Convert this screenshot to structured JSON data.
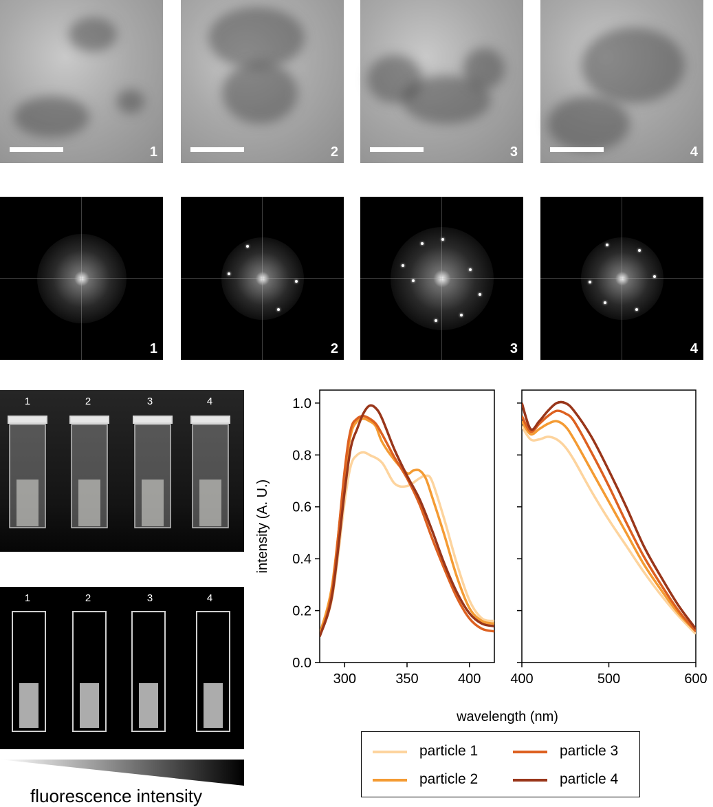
{
  "tem_panels": [
    {
      "label": "1"
    },
    {
      "label": "2"
    },
    {
      "label": "3"
    },
    {
      "label": "4"
    }
  ],
  "fft_panels": [
    {
      "label": "1"
    },
    {
      "label": "2"
    },
    {
      "label": "3"
    },
    {
      "label": "4"
    }
  ],
  "photo_ambient": {
    "labels": [
      "1",
      "2",
      "3",
      "4"
    ]
  },
  "photo_uv": {
    "labels": [
      "1",
      "2",
      "3",
      "4"
    ]
  },
  "gradient_caption": "fluorescence intensity",
  "chart_data": {
    "type": "line",
    "ylabel": "intensity (A. U.)",
    "xlabel": "wavelength (nm)",
    "ylim": [
      0.0,
      1.05
    ],
    "yticks": [
      "0.0",
      "0.2",
      "0.4",
      "0.6",
      "0.8",
      "1.0"
    ],
    "left_panel": {
      "xlim": [
        280,
        420
      ],
      "xticks": [
        "300",
        "350",
        "400"
      ],
      "series": [
        {
          "name": "particle 1",
          "color": "#fdd49e",
          "x": [
            280,
            290,
            300,
            305,
            310,
            315,
            320,
            330,
            340,
            350,
            360,
            365,
            370,
            380,
            390,
            400,
            410,
            420
          ],
          "y": [
            0.11,
            0.25,
            0.62,
            0.76,
            0.8,
            0.81,
            0.8,
            0.77,
            0.69,
            0.68,
            0.71,
            0.72,
            0.7,
            0.55,
            0.38,
            0.24,
            0.17,
            0.16
          ]
        },
        {
          "name": "particle 2",
          "color": "#f49b33",
          "x": [
            280,
            290,
            300,
            305,
            310,
            315,
            320,
            325,
            330,
            340,
            350,
            355,
            360,
            365,
            370,
            380,
            390,
            400,
            410,
            420
          ],
          "y": [
            0.11,
            0.3,
            0.72,
            0.88,
            0.93,
            0.94,
            0.93,
            0.91,
            0.85,
            0.78,
            0.73,
            0.74,
            0.74,
            0.71,
            0.64,
            0.49,
            0.33,
            0.21,
            0.16,
            0.15
          ]
        },
        {
          "name": "particle 3",
          "color": "#dd6121",
          "x": [
            280,
            290,
            300,
            305,
            310,
            315,
            320,
            325,
            330,
            340,
            350,
            360,
            370,
            380,
            390,
            400,
            410,
            420
          ],
          "y": [
            0.1,
            0.28,
            0.74,
            0.9,
            0.94,
            0.95,
            0.94,
            0.92,
            0.88,
            0.79,
            0.71,
            0.61,
            0.48,
            0.36,
            0.25,
            0.17,
            0.13,
            0.12
          ]
        },
        {
          "name": "particle 4",
          "color": "#99361a",
          "x": [
            280,
            290,
            300,
            305,
            310,
            315,
            320,
            325,
            330,
            340,
            350,
            360,
            370,
            380,
            390,
            400,
            410,
            420
          ],
          "y": [
            0.1,
            0.26,
            0.66,
            0.83,
            0.9,
            0.96,
            0.99,
            0.98,
            0.94,
            0.82,
            0.72,
            0.63,
            0.51,
            0.38,
            0.27,
            0.19,
            0.15,
            0.14
          ]
        }
      ]
    },
    "right_panel": {
      "xlim": [
        400,
        600
      ],
      "xticks": [
        "400",
        "500",
        "600"
      ],
      "series": [
        {
          "name": "particle 1",
          "color": "#fdd49e",
          "x": [
            400,
            410,
            420,
            430,
            440,
            450,
            460,
            480,
            500,
            520,
            540,
            560,
            580,
            600
          ],
          "y": [
            0.91,
            0.86,
            0.86,
            0.87,
            0.86,
            0.83,
            0.78,
            0.66,
            0.55,
            0.45,
            0.35,
            0.26,
            0.18,
            0.11
          ]
        },
        {
          "name": "particle 2",
          "color": "#f49b33",
          "x": [
            400,
            410,
            420,
            430,
            440,
            450,
            460,
            480,
            500,
            520,
            540,
            560,
            580,
            600
          ],
          "y": [
            0.93,
            0.88,
            0.9,
            0.92,
            0.93,
            0.91,
            0.86,
            0.74,
            0.62,
            0.5,
            0.38,
            0.28,
            0.19,
            0.12
          ]
        },
        {
          "name": "particle 3",
          "color": "#dd6121",
          "x": [
            400,
            410,
            420,
            430,
            440,
            450,
            460,
            480,
            500,
            520,
            540,
            560,
            580,
            600
          ],
          "y": [
            0.95,
            0.89,
            0.92,
            0.95,
            0.97,
            0.96,
            0.93,
            0.81,
            0.68,
            0.54,
            0.41,
            0.3,
            0.2,
            0.12
          ]
        },
        {
          "name": "particle 4",
          "color": "#99361a",
          "x": [
            400,
            410,
            420,
            430,
            440,
            450,
            460,
            480,
            500,
            520,
            540,
            560,
            580,
            600
          ],
          "y": [
            1.0,
            0.9,
            0.93,
            0.97,
            1.0,
            1.0,
            0.97,
            0.87,
            0.74,
            0.6,
            0.45,
            0.33,
            0.22,
            0.13
          ]
        }
      ]
    },
    "legend": {
      "position": "bottom",
      "entries": [
        {
          "label": "particle 1",
          "color": "#fdd49e"
        },
        {
          "label": "particle 2",
          "color": "#f49b33"
        },
        {
          "label": "particle 3",
          "color": "#dd6121"
        },
        {
          "label": "particle 4",
          "color": "#99361a"
        }
      ]
    }
  }
}
